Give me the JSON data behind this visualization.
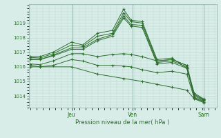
{
  "background_color": "#d8ede8",
  "grid_color": "#b8d8d0",
  "line_color": "#2d6e2d",
  "marker": "+",
  "xlabel": "Pression niveau de la mer( hPa )",
  "ylim": [
    1013.2,
    1020.3
  ],
  "yticks": [
    1014,
    1015,
    1016,
    1017,
    1018,
    1019
  ],
  "day_labels": [
    "Jeu",
    "Ven",
    "Sam"
  ],
  "day_positions": [
    0.22,
    0.55,
    0.93
  ],
  "series": [
    [
      0.0,
      1016.7,
      0.05,
      1016.7,
      0.12,
      1017.0,
      0.22,
      1017.7,
      0.28,
      1017.5,
      0.36,
      1018.3,
      0.44,
      1018.5,
      0.5,
      1019.95,
      0.54,
      1019.2,
      0.6,
      1019.1,
      0.68,
      1016.5,
      0.76,
      1016.6,
      0.84,
      1015.9,
      0.88,
      1014.2,
      0.93,
      1013.8
    ],
    [
      0.0,
      1016.65,
      0.05,
      1016.6,
      0.12,
      1016.9,
      0.22,
      1017.5,
      0.28,
      1017.4,
      0.36,
      1018.1,
      0.44,
      1018.3,
      0.5,
      1019.7,
      0.54,
      1019.1,
      0.6,
      1019.0,
      0.68,
      1016.4,
      0.76,
      1016.5,
      0.84,
      1016.1,
      0.88,
      1014.1,
      0.93,
      1013.75
    ],
    [
      0.0,
      1016.55,
      0.05,
      1016.5,
      0.12,
      1016.8,
      0.22,
      1017.3,
      0.28,
      1017.3,
      0.36,
      1017.9,
      0.44,
      1018.2,
      0.5,
      1019.5,
      0.54,
      1018.9,
      0.6,
      1018.85,
      0.68,
      1016.3,
      0.76,
      1016.4,
      0.84,
      1016.0,
      0.88,
      1014.0,
      0.93,
      1013.7
    ],
    [
      0.0,
      1016.5,
      0.05,
      1016.5,
      0.12,
      1016.75,
      0.22,
      1017.2,
      0.28,
      1017.2,
      0.36,
      1017.8,
      0.44,
      1018.1,
      0.5,
      1019.35,
      0.54,
      1018.8,
      0.6,
      1018.7,
      0.68,
      1016.2,
      0.76,
      1016.3,
      0.84,
      1015.9,
      0.88,
      1013.9,
      0.93,
      1013.65
    ],
    [
      0.0,
      1016.2,
      0.05,
      1016.15,
      0.12,
      1016.4,
      0.22,
      1016.9,
      0.28,
      1016.9,
      0.36,
      1016.7,
      0.44,
      1016.85,
      0.5,
      1016.9,
      0.54,
      1016.85,
      0.6,
      1016.7,
      0.68,
      1016.4,
      0.76,
      1016.5,
      0.84,
      1016.1,
      0.88,
      1014.1,
      0.93,
      1013.75
    ],
    [
      0.0,
      1016.1,
      0.05,
      1016.0,
      0.12,
      1016.1,
      0.22,
      1016.5,
      0.28,
      1016.4,
      0.36,
      1016.1,
      0.44,
      1016.1,
      0.5,
      1016.05,
      0.54,
      1016.0,
      0.6,
      1015.8,
      0.68,
      1015.6,
      0.76,
      1015.7,
      0.84,
      1015.5,
      0.88,
      1013.85,
      0.93,
      1013.6
    ],
    [
      0.0,
      1016.0,
      0.22,
      1016.0,
      0.36,
      1015.5,
      0.5,
      1015.2,
      0.6,
      1015.0,
      0.68,
      1014.8,
      0.76,
      1014.6,
      0.84,
      1014.4,
      0.88,
      1013.8,
      0.93,
      1013.55
    ]
  ]
}
